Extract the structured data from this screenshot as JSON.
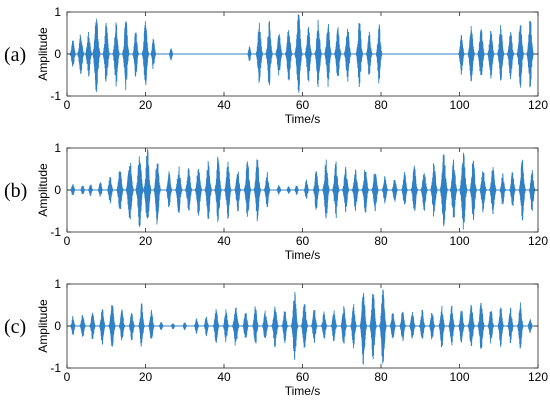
{
  "figure": {
    "line_color": "#2f80c5"
  },
  "chart_data": [
    {
      "type": "line",
      "panel_label": "(a)",
      "xlabel": "Time/s",
      "ylabel": "Amplitude",
      "xlim": [
        0,
        120
      ],
      "ylim": [
        -1,
        1
      ],
      "xticks": [
        0,
        20,
        40,
        60,
        80,
        100,
        120
      ],
      "yticks": [
        -1,
        0,
        1
      ],
      "grid": false,
      "bursts": [
        {
          "t": 1.5,
          "a": 0.35,
          "w": 0.7
        },
        {
          "t": 3.5,
          "a": 0.5,
          "w": 0.8
        },
        {
          "t": 5.5,
          "a": 0.55,
          "w": 0.8
        },
        {
          "t": 7.5,
          "a": 0.95,
          "w": 0.9
        },
        {
          "t": 10,
          "a": 0.75,
          "w": 0.8
        },
        {
          "t": 12.5,
          "a": 0.8,
          "w": 0.8
        },
        {
          "t": 15,
          "a": 0.9,
          "w": 0.8
        },
        {
          "t": 17.5,
          "a": 0.6,
          "w": 0.7
        },
        {
          "t": 20,
          "a": 0.8,
          "w": 0.8
        },
        {
          "t": 22,
          "a": 0.4,
          "w": 0.6
        },
        {
          "t": 26.5,
          "a": 0.18,
          "w": 0.5
        },
        {
          "t": 46.5,
          "a": 0.2,
          "w": 0.5
        },
        {
          "t": 49,
          "a": 0.75,
          "w": 0.8
        },
        {
          "t": 51.5,
          "a": 0.8,
          "w": 0.8
        },
        {
          "t": 54,
          "a": 0.55,
          "w": 0.8
        },
        {
          "t": 56.5,
          "a": 0.7,
          "w": 0.8
        },
        {
          "t": 59,
          "a": 1.0,
          "w": 0.9
        },
        {
          "t": 61.5,
          "a": 0.7,
          "w": 0.8
        },
        {
          "t": 64,
          "a": 0.85,
          "w": 0.8
        },
        {
          "t": 66.5,
          "a": 0.8,
          "w": 0.8
        },
        {
          "t": 69,
          "a": 0.65,
          "w": 0.8
        },
        {
          "t": 71.5,
          "a": 0.7,
          "w": 0.8
        },
        {
          "t": 74.5,
          "a": 0.85,
          "w": 0.8
        },
        {
          "t": 77,
          "a": 0.55,
          "w": 0.7
        },
        {
          "t": 79.5,
          "a": 0.75,
          "w": 0.7
        },
        {
          "t": 100.5,
          "a": 0.5,
          "w": 0.7
        },
        {
          "t": 103,
          "a": 0.7,
          "w": 0.8
        },
        {
          "t": 105.5,
          "a": 0.7,
          "w": 0.8
        },
        {
          "t": 108,
          "a": 0.6,
          "w": 0.8
        },
        {
          "t": 110.5,
          "a": 0.7,
          "w": 0.8
        },
        {
          "t": 113,
          "a": 0.6,
          "w": 0.8
        },
        {
          "t": 115.5,
          "a": 0.8,
          "w": 0.8
        },
        {
          "t": 118,
          "a": 0.9,
          "w": 0.8
        }
      ]
    },
    {
      "type": "line",
      "panel_label": "(b)",
      "xlabel": "Time/s",
      "ylabel": "Amplitude",
      "xlim": [
        0,
        120
      ],
      "ylim": [
        -1,
        1
      ],
      "xticks": [
        0,
        20,
        40,
        60,
        80,
        100,
        120
      ],
      "yticks": [
        -1,
        0,
        1
      ],
      "grid": false,
      "bursts": [
        {
          "t": 1.5,
          "a": 0.15,
          "w": 0.6
        },
        {
          "t": 4,
          "a": 0.12,
          "w": 0.6
        },
        {
          "t": 6,
          "a": 0.15,
          "w": 0.6
        },
        {
          "t": 8.5,
          "a": 0.2,
          "w": 0.6
        },
        {
          "t": 11,
          "a": 0.35,
          "w": 0.7
        },
        {
          "t": 13.5,
          "a": 0.55,
          "w": 0.8
        },
        {
          "t": 16,
          "a": 0.8,
          "w": 0.9
        },
        {
          "t": 18.5,
          "a": 0.9,
          "w": 0.9
        },
        {
          "t": 20.5,
          "a": 1.0,
          "w": 0.9
        },
        {
          "t": 23,
          "a": 0.85,
          "w": 0.8
        },
        {
          "t": 26,
          "a": 0.45,
          "w": 0.7
        },
        {
          "t": 28.5,
          "a": 0.6,
          "w": 0.8
        },
        {
          "t": 31,
          "a": 0.55,
          "w": 0.8
        },
        {
          "t": 33.5,
          "a": 0.65,
          "w": 0.8
        },
        {
          "t": 36,
          "a": 0.75,
          "w": 0.8
        },
        {
          "t": 38.5,
          "a": 0.85,
          "w": 0.8
        },
        {
          "t": 41,
          "a": 0.7,
          "w": 0.8
        },
        {
          "t": 43.5,
          "a": 0.55,
          "w": 0.7
        },
        {
          "t": 46,
          "a": 0.75,
          "w": 0.8
        },
        {
          "t": 48.5,
          "a": 0.8,
          "w": 0.8
        },
        {
          "t": 51,
          "a": 0.45,
          "w": 0.7
        },
        {
          "t": 54,
          "a": 0.12,
          "w": 0.6
        },
        {
          "t": 56.5,
          "a": 0.1,
          "w": 0.6
        },
        {
          "t": 58.5,
          "a": 0.12,
          "w": 0.6
        },
        {
          "t": 61,
          "a": 0.25,
          "w": 0.6
        },
        {
          "t": 63.5,
          "a": 0.55,
          "w": 0.7
        },
        {
          "t": 66,
          "a": 0.75,
          "w": 0.8
        },
        {
          "t": 68.5,
          "a": 0.7,
          "w": 0.8
        },
        {
          "t": 71,
          "a": 0.55,
          "w": 0.8
        },
        {
          "t": 73.5,
          "a": 0.5,
          "w": 0.8
        },
        {
          "t": 76,
          "a": 0.6,
          "w": 0.8
        },
        {
          "t": 78.5,
          "a": 0.55,
          "w": 0.8
        },
        {
          "t": 81,
          "a": 0.35,
          "w": 0.7
        },
        {
          "t": 83.5,
          "a": 0.3,
          "w": 0.7
        },
        {
          "t": 86,
          "a": 0.45,
          "w": 0.7
        },
        {
          "t": 88.5,
          "a": 0.6,
          "w": 0.8
        },
        {
          "t": 91,
          "a": 0.5,
          "w": 0.8
        },
        {
          "t": 93.5,
          "a": 0.7,
          "w": 0.8
        },
        {
          "t": 96,
          "a": 0.9,
          "w": 0.9
        },
        {
          "t": 98.5,
          "a": 0.8,
          "w": 0.8
        },
        {
          "t": 101,
          "a": 0.95,
          "w": 0.9
        },
        {
          "t": 103.5,
          "a": 0.8,
          "w": 0.8
        },
        {
          "t": 106,
          "a": 0.55,
          "w": 0.8
        },
        {
          "t": 108.5,
          "a": 0.6,
          "w": 0.8
        },
        {
          "t": 111,
          "a": 0.4,
          "w": 0.7
        },
        {
          "t": 113.5,
          "a": 0.45,
          "w": 0.7
        },
        {
          "t": 116,
          "a": 0.75,
          "w": 0.8
        },
        {
          "t": 118.5,
          "a": 0.55,
          "w": 0.7
        }
      ]
    },
    {
      "type": "line",
      "panel_label": "(c)",
      "xlabel": "Time/s",
      "ylabel": "Amplitude",
      "xlim": [
        0,
        120
      ],
      "ylim": [
        -1,
        1
      ],
      "xticks": [
        0,
        20,
        40,
        60,
        80,
        100,
        120
      ],
      "yticks": [
        -1,
        0,
        1
      ],
      "grid": false,
      "bursts": [
        {
          "t": 1.5,
          "a": 0.25,
          "w": 0.6
        },
        {
          "t": 4,
          "a": 0.3,
          "w": 0.7
        },
        {
          "t": 6.5,
          "a": 0.35,
          "w": 0.7
        },
        {
          "t": 9,
          "a": 0.45,
          "w": 0.7
        },
        {
          "t": 11.5,
          "a": 0.55,
          "w": 0.8
        },
        {
          "t": 14,
          "a": 0.4,
          "w": 0.7
        },
        {
          "t": 16.5,
          "a": 0.35,
          "w": 0.7
        },
        {
          "t": 19,
          "a": 0.55,
          "w": 0.7
        },
        {
          "t": 21.5,
          "a": 0.4,
          "w": 0.7
        },
        {
          "t": 24,
          "a": 0.1,
          "w": 0.6
        },
        {
          "t": 27,
          "a": 0.08,
          "w": 0.6
        },
        {
          "t": 30,
          "a": 0.1,
          "w": 0.6
        },
        {
          "t": 33,
          "a": 0.2,
          "w": 0.6
        },
        {
          "t": 35.5,
          "a": 0.25,
          "w": 0.6
        },
        {
          "t": 38,
          "a": 0.45,
          "w": 0.7
        },
        {
          "t": 40.5,
          "a": 0.4,
          "w": 0.7
        },
        {
          "t": 43,
          "a": 0.55,
          "w": 0.8
        },
        {
          "t": 45.5,
          "a": 0.4,
          "w": 0.7
        },
        {
          "t": 48,
          "a": 0.5,
          "w": 0.7
        },
        {
          "t": 50.5,
          "a": 0.4,
          "w": 0.7
        },
        {
          "t": 53,
          "a": 0.55,
          "w": 0.8
        },
        {
          "t": 55.5,
          "a": 0.45,
          "w": 0.7
        },
        {
          "t": 58,
          "a": 0.85,
          "w": 0.8
        },
        {
          "t": 60.5,
          "a": 0.6,
          "w": 0.8
        },
        {
          "t": 63,
          "a": 0.45,
          "w": 0.7
        },
        {
          "t": 65.5,
          "a": 0.35,
          "w": 0.7
        },
        {
          "t": 68,
          "a": 0.4,
          "w": 0.7
        },
        {
          "t": 70.5,
          "a": 0.5,
          "w": 0.7
        },
        {
          "t": 73,
          "a": 0.55,
          "w": 0.7
        },
        {
          "t": 75.5,
          "a": 0.95,
          "w": 0.8
        },
        {
          "t": 78,
          "a": 0.85,
          "w": 0.8
        },
        {
          "t": 80.5,
          "a": 1.0,
          "w": 0.8
        },
        {
          "t": 83,
          "a": 0.35,
          "w": 0.7
        },
        {
          "t": 85.5,
          "a": 0.4,
          "w": 0.7
        },
        {
          "t": 88,
          "a": 0.35,
          "w": 0.7
        },
        {
          "t": 90.5,
          "a": 0.4,
          "w": 0.7
        },
        {
          "t": 93,
          "a": 0.35,
          "w": 0.7
        },
        {
          "t": 95.5,
          "a": 0.55,
          "w": 0.7
        },
        {
          "t": 98,
          "a": 0.5,
          "w": 0.7
        },
        {
          "t": 100.5,
          "a": 0.45,
          "w": 0.7
        },
        {
          "t": 103,
          "a": 0.55,
          "w": 0.8
        },
        {
          "t": 105.5,
          "a": 0.6,
          "w": 0.8
        },
        {
          "t": 108,
          "a": 0.45,
          "w": 0.7
        },
        {
          "t": 110.5,
          "a": 0.5,
          "w": 0.7
        },
        {
          "t": 113,
          "a": 0.45,
          "w": 0.7
        },
        {
          "t": 115.5,
          "a": 0.6,
          "w": 0.7
        },
        {
          "t": 118,
          "a": 0.2,
          "w": 0.6
        }
      ]
    }
  ]
}
